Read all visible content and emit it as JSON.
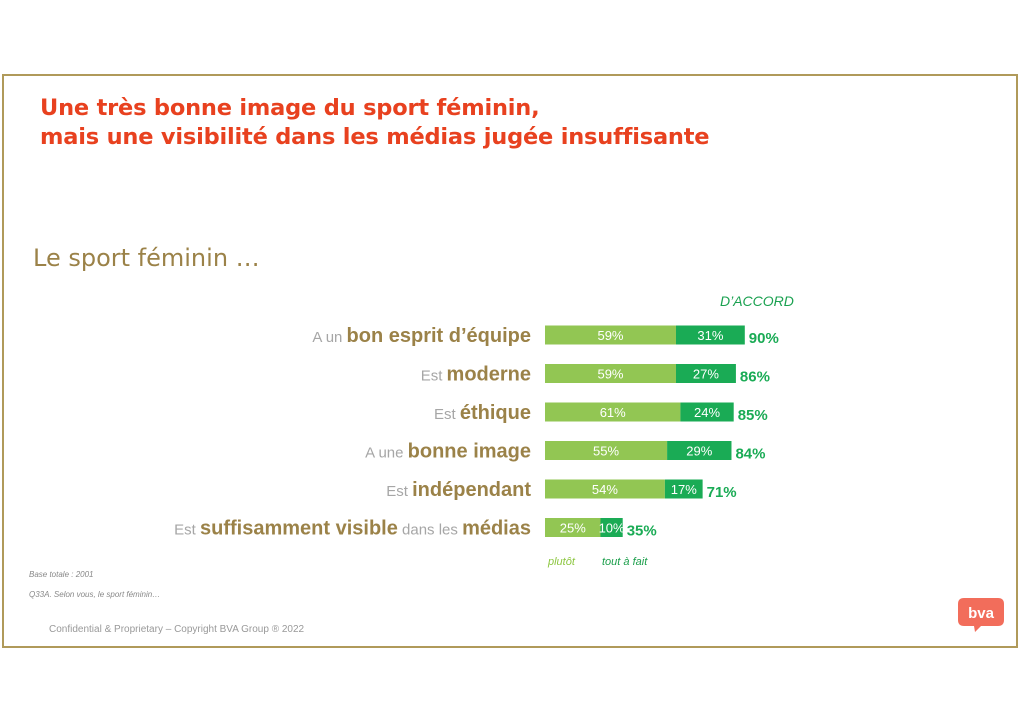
{
  "title_line1": "Une très bonne image du sport féminin,",
  "title_line2": "mais une visibilité dans les médias jugée insuffisante",
  "subtitle": "Le sport féminin …",
  "total_header": "D’ACCORD",
  "legend": {
    "plutot": "plutôt",
    "tout": "tout à fait"
  },
  "footnotes": {
    "base": "Base totale : 2001",
    "question": "Q33A. Selon vous, le sport féminin…"
  },
  "confidential": "Confidential & Proprietary – Copyright BVA Group ® 2022",
  "logo_text": "BVA",
  "colors": {
    "plutot": "#92c653",
    "tout": "#1aab55",
    "label_bold": "#9b8248",
    "label_light": "#a6a6a6",
    "title": "#e8411f",
    "logo": "#f26d5b"
  },
  "chart_data": {
    "type": "bar",
    "orientation": "horizontal",
    "stacked": true,
    "categories": [
      [
        {
          "t": "A un ",
          "b": false
        },
        {
          "t": "bon esprit d’équipe",
          "b": true
        }
      ],
      [
        {
          "t": "Est ",
          "b": false
        },
        {
          "t": "moderne",
          "b": true
        }
      ],
      [
        {
          "t": "Est ",
          "b": false
        },
        {
          "t": "éthique",
          "b": true
        }
      ],
      [
        {
          "t": "A une ",
          "b": false
        },
        {
          "t": "bonne image",
          "b": true
        }
      ],
      [
        {
          "t": "Est ",
          "b": false
        },
        {
          "t": "indépendant",
          "b": true
        }
      ],
      [
        {
          "t": "Est ",
          "b": false
        },
        {
          "t": "suffisamment visible",
          "b": true
        },
        {
          "t": " dans les ",
          "b": false
        },
        {
          "t": "médias",
          "b": true
        }
      ]
    ],
    "series": [
      {
        "name": "plutôt",
        "values": [
          59,
          59,
          61,
          55,
          54,
          25
        ]
      },
      {
        "name": "tout à fait",
        "values": [
          31,
          27,
          24,
          29,
          17,
          10
        ]
      }
    ],
    "totals": [
      90,
      86,
      85,
      84,
      71,
      35
    ],
    "value_suffix": "%"
  }
}
